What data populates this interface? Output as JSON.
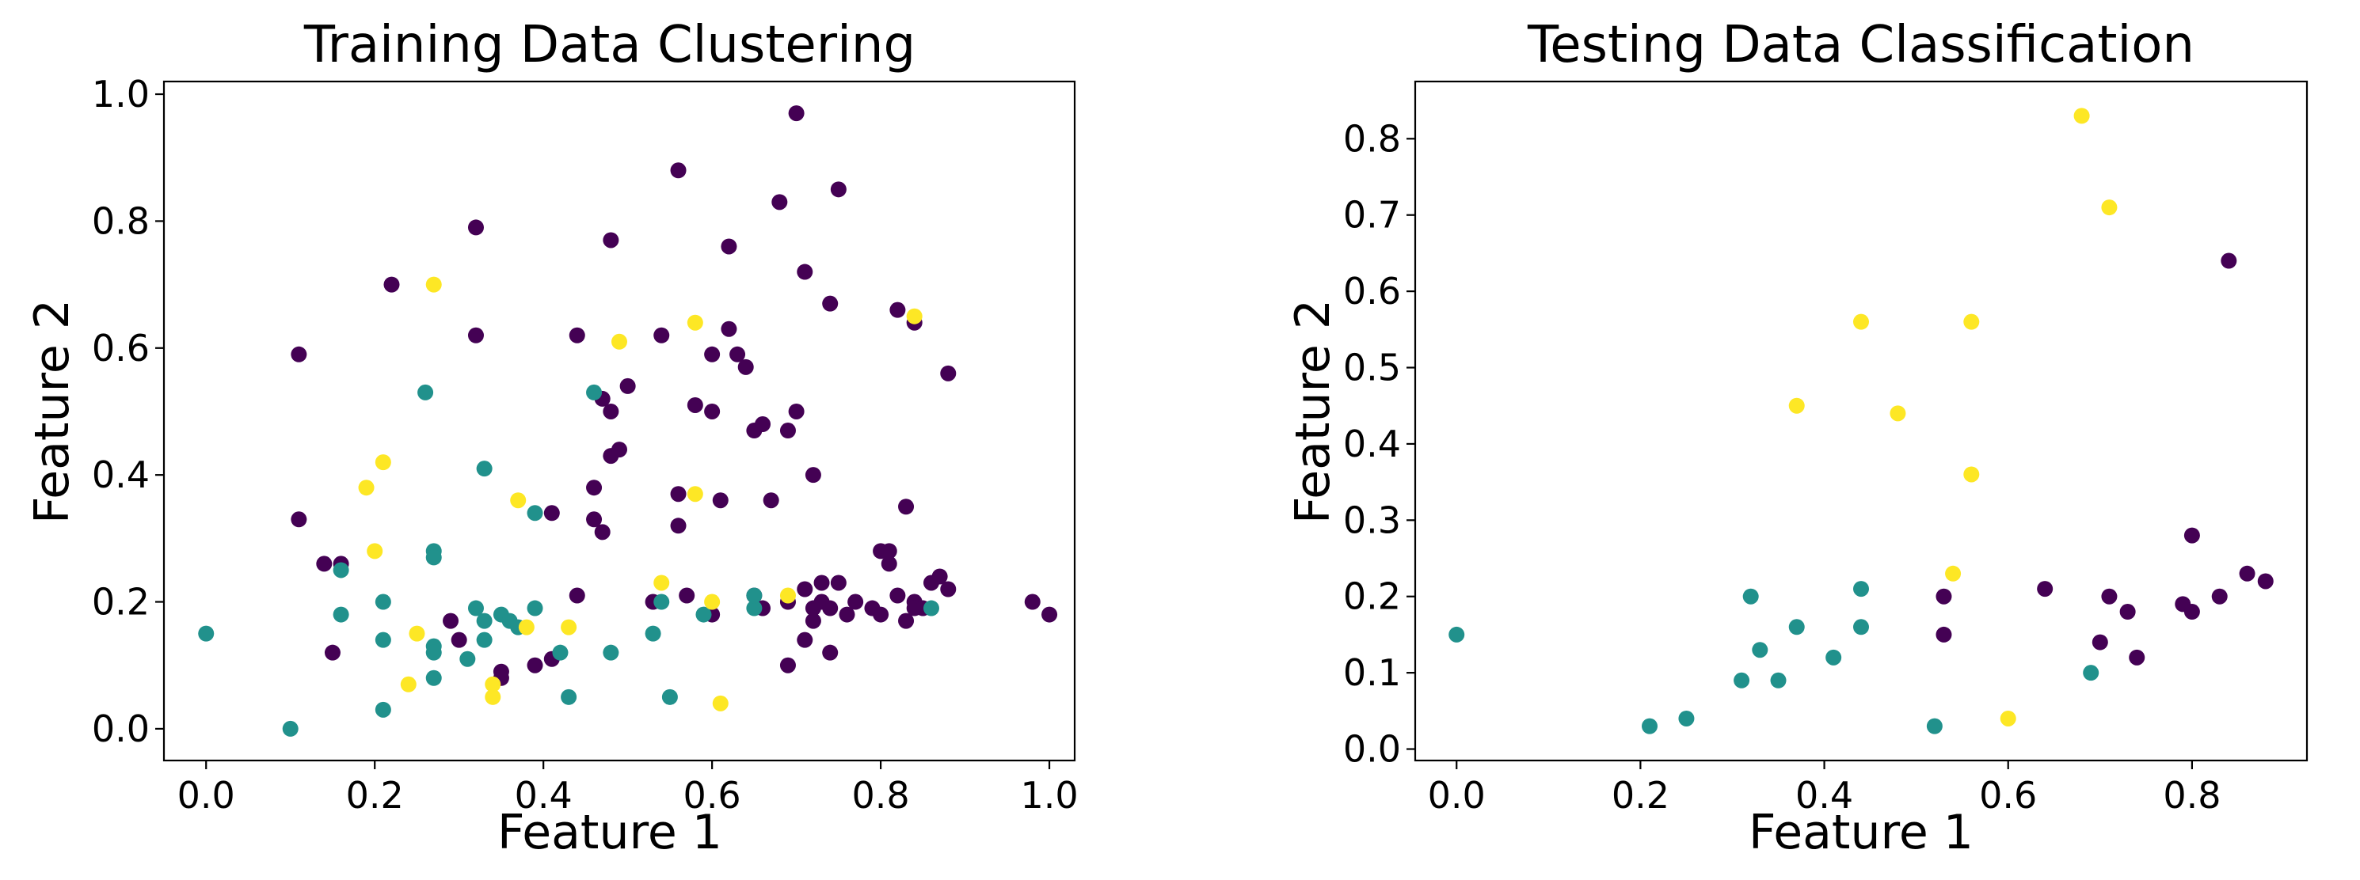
{
  "colors": {
    "cluster_purple": "#440154",
    "cluster_teal": "#21918c",
    "cluster_yellow": "#fde725"
  },
  "chart_data": [
    {
      "type": "scatter",
      "title": "Training Data Clustering",
      "xlabel": "Feature 1",
      "ylabel": "Feature 2",
      "xlim": [
        -0.05,
        1.03
      ],
      "ylim": [
        -0.05,
        1.02
      ],
      "xticks": [
        "0.0",
        "0.2",
        "0.4",
        "0.6",
        "0.8",
        "1.0"
      ],
      "yticks": [
        "0.0",
        "0.2",
        "0.4",
        "0.6",
        "0.8",
        "1.0"
      ],
      "grid": false,
      "legend": "none",
      "series": [
        {
          "color": "#440154",
          "points": [
            [
              0.11,
              0.59
            ],
            [
              0.11,
              0.33
            ],
            [
              0.14,
              0.26
            ],
            [
              0.15,
              0.12
            ],
            [
              0.16,
              0.26
            ],
            [
              0.22,
              0.7
            ],
            [
              0.29,
              0.17
            ],
            [
              0.3,
              0.14
            ],
            [
              0.32,
              0.79
            ],
            [
              0.32,
              0.62
            ],
            [
              0.35,
              0.09
            ],
            [
              0.35,
              0.08
            ],
            [
              0.39,
              0.1
            ],
            [
              0.41,
              0.11
            ],
            [
              0.41,
              0.34
            ],
            [
              0.44,
              0.62
            ],
            [
              0.44,
              0.21
            ],
            [
              0.46,
              0.33
            ],
            [
              0.46,
              0.38
            ],
            [
              0.47,
              0.31
            ],
            [
              0.47,
              0.52
            ],
            [
              0.48,
              0.5
            ],
            [
              0.48,
              0.43
            ],
            [
              0.49,
              0.44
            ],
            [
              0.48,
              0.77
            ],
            [
              0.5,
              0.54
            ],
            [
              0.53,
              0.2
            ],
            [
              0.54,
              0.62
            ],
            [
              0.56,
              0.88
            ],
            [
              0.56,
              0.32
            ],
            [
              0.56,
              0.37
            ],
            [
              0.57,
              0.21
            ],
            [
              0.58,
              0.51
            ],
            [
              0.6,
              0.5
            ],
            [
              0.6,
              0.59
            ],
            [
              0.6,
              0.18
            ],
            [
              0.61,
              0.36
            ],
            [
              0.62,
              0.76
            ],
            [
              0.62,
              0.63
            ],
            [
              0.63,
              0.59
            ],
            [
              0.64,
              0.57
            ],
            [
              0.65,
              0.21
            ],
            [
              0.65,
              0.47
            ],
            [
              0.66,
              0.48
            ],
            [
              0.66,
              0.19
            ],
            [
              0.67,
              0.36
            ],
            [
              0.68,
              0.83
            ],
            [
              0.69,
              0.47
            ],
            [
              0.69,
              0.2
            ],
            [
              0.69,
              0.1
            ],
            [
              0.7,
              0.5
            ],
            [
              0.7,
              0.97
            ],
            [
              0.71,
              0.72
            ],
            [
              0.71,
              0.22
            ],
            [
              0.71,
              0.14
            ],
            [
              0.72,
              0.17
            ],
            [
              0.72,
              0.4
            ],
            [
              0.72,
              0.19
            ],
            [
              0.73,
              0.23
            ],
            [
              0.73,
              0.2
            ],
            [
              0.74,
              0.67
            ],
            [
              0.74,
              0.19
            ],
            [
              0.74,
              0.12
            ],
            [
              0.75,
              0.85
            ],
            [
              0.75,
              0.23
            ],
            [
              0.76,
              0.18
            ],
            [
              0.77,
              0.2
            ],
            [
              0.79,
              0.19
            ],
            [
              0.8,
              0.18
            ],
            [
              0.8,
              0.28
            ],
            [
              0.81,
              0.28
            ],
            [
              0.81,
              0.26
            ],
            [
              0.82,
              0.66
            ],
            [
              0.82,
              0.21
            ],
            [
              0.83,
              0.35
            ],
            [
              0.83,
              0.17
            ],
            [
              0.84,
              0.2
            ],
            [
              0.84,
              0.64
            ],
            [
              0.84,
              0.19
            ],
            [
              0.85,
              0.19
            ],
            [
              0.86,
              0.23
            ],
            [
              0.87,
              0.24
            ],
            [
              0.88,
              0.22
            ],
            [
              0.88,
              0.56
            ],
            [
              0.98,
              0.2
            ],
            [
              1.0,
              0.18
            ]
          ]
        },
        {
          "color": "#21918c",
          "points": [
            [
              0.0,
              0.15
            ],
            [
              0.1,
              0.0
            ],
            [
              0.16,
              0.25
            ],
            [
              0.16,
              0.18
            ],
            [
              0.21,
              0.2
            ],
            [
              0.21,
              0.14
            ],
            [
              0.21,
              0.03
            ],
            [
              0.26,
              0.53
            ],
            [
              0.27,
              0.28
            ],
            [
              0.27,
              0.27
            ],
            [
              0.27,
              0.13
            ],
            [
              0.27,
              0.12
            ],
            [
              0.27,
              0.08
            ],
            [
              0.31,
              0.11
            ],
            [
              0.32,
              0.19
            ],
            [
              0.33,
              0.41
            ],
            [
              0.33,
              0.17
            ],
            [
              0.33,
              0.14
            ],
            [
              0.35,
              0.18
            ],
            [
              0.36,
              0.17
            ],
            [
              0.37,
              0.16
            ],
            [
              0.39,
              0.34
            ],
            [
              0.39,
              0.19
            ],
            [
              0.42,
              0.12
            ],
            [
              0.43,
              0.05
            ],
            [
              0.46,
              0.53
            ],
            [
              0.48,
              0.12
            ],
            [
              0.53,
              0.15
            ],
            [
              0.54,
              0.2
            ],
            [
              0.55,
              0.05
            ],
            [
              0.59,
              0.18
            ],
            [
              0.65,
              0.19
            ],
            [
              0.65,
              0.21
            ],
            [
              0.86,
              0.19
            ]
          ]
        },
        {
          "color": "#fde725",
          "points": [
            [
              0.19,
              0.38
            ],
            [
              0.2,
              0.28
            ],
            [
              0.21,
              0.42
            ],
            [
              0.24,
              0.07
            ],
            [
              0.25,
              0.15
            ],
            [
              0.27,
              0.7
            ],
            [
              0.34,
              0.07
            ],
            [
              0.34,
              0.05
            ],
            [
              0.37,
              0.36
            ],
            [
              0.38,
              0.16
            ],
            [
              0.43,
              0.16
            ],
            [
              0.49,
              0.61
            ],
            [
              0.54,
              0.23
            ],
            [
              0.58,
              0.64
            ],
            [
              0.58,
              0.37
            ],
            [
              0.6,
              0.2
            ],
            [
              0.61,
              0.04
            ],
            [
              0.69,
              0.21
            ],
            [
              0.84,
              0.65
            ]
          ]
        }
      ]
    },
    {
      "type": "scatter",
      "title": "Testing Data Classification",
      "xlabel": "Feature 1",
      "ylabel": "Feature 2",
      "xlim": [
        -0.045,
        0.925
      ],
      "ylim": [
        -0.015,
        0.875
      ],
      "xticks": [
        "0.0",
        "0.2",
        "0.4",
        "0.6",
        "0.8"
      ],
      "yticks": [
        "0.0",
        "0.1",
        "0.2",
        "0.3",
        "0.4",
        "0.5",
        "0.6",
        "0.7",
        "0.8"
      ],
      "grid": false,
      "legend": "none",
      "series": [
        {
          "color": "#440154",
          "points": [
            [
              0.53,
              0.2
            ],
            [
              0.53,
              0.15
            ],
            [
              0.64,
              0.21
            ],
            [
              0.7,
              0.14
            ],
            [
              0.71,
              0.2
            ],
            [
              0.73,
              0.18
            ],
            [
              0.74,
              0.12
            ],
            [
              0.79,
              0.19
            ],
            [
              0.8,
              0.18
            ],
            [
              0.8,
              0.28
            ],
            [
              0.83,
              0.2
            ],
            [
              0.84,
              0.64
            ],
            [
              0.86,
              0.23
            ],
            [
              0.88,
              0.22
            ]
          ]
        },
        {
          "color": "#21918c",
          "points": [
            [
              0.0,
              0.15
            ],
            [
              0.21,
              0.03
            ],
            [
              0.25,
              0.04
            ],
            [
              0.31,
              0.09
            ],
            [
              0.32,
              0.2
            ],
            [
              0.33,
              0.13
            ],
            [
              0.35,
              0.09
            ],
            [
              0.37,
              0.16
            ],
            [
              0.41,
              0.12
            ],
            [
              0.44,
              0.16
            ],
            [
              0.44,
              0.21
            ],
            [
              0.52,
              0.03
            ],
            [
              0.69,
              0.1
            ]
          ]
        },
        {
          "color": "#fde725",
          "points": [
            [
              0.37,
              0.45
            ],
            [
              0.44,
              0.56
            ],
            [
              0.48,
              0.44
            ],
            [
              0.54,
              0.23
            ],
            [
              0.56,
              0.56
            ],
            [
              0.56,
              0.36
            ],
            [
              0.6,
              0.04
            ],
            [
              0.68,
              0.83
            ],
            [
              0.71,
              0.71
            ]
          ]
        }
      ]
    }
  ]
}
